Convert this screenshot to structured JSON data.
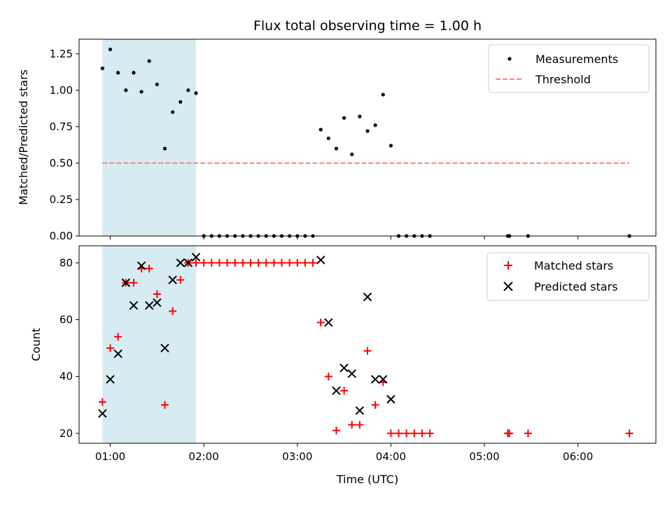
{
  "chart_data": [
    {
      "type": "scatter",
      "title": "Flux total observing time = 1.00 h",
      "ylabel": "Matched/Predicted stars",
      "xlim": [
        "00:40",
        "06:50"
      ],
      "ylim": [
        0,
        1.35
      ],
      "yticks": [
        "0.00",
        "0.25",
        "0.50",
        "0.75",
        "1.00",
        "1.25"
      ],
      "shaded_interval": [
        "00:55",
        "01:55"
      ],
      "legend_position": "upper right",
      "colors": {
        "measurements": "#000000",
        "threshold": "#ff7f7f",
        "shade": "#add8e6"
      },
      "series": [
        {
          "name": "Measurements",
          "points": [
            [
              "00:55",
              1.15
            ],
            [
              "01:00",
              1.28
            ],
            [
              "01:05",
              1.12
            ],
            [
              "01:10",
              1.0
            ],
            [
              "01:15",
              1.12
            ],
            [
              "01:20",
              0.99
            ],
            [
              "01:25",
              1.2
            ],
            [
              "01:30",
              1.04
            ],
            [
              "01:35",
              0.6
            ],
            [
              "01:40",
              0.85
            ],
            [
              "01:45",
              0.92
            ],
            [
              "01:50",
              1.0
            ],
            [
              "01:55",
              0.98
            ],
            [
              "02:00",
              0
            ],
            [
              "02:05",
              0
            ],
            [
              "02:10",
              0
            ],
            [
              "02:15",
              0
            ],
            [
              "02:20",
              0
            ],
            [
              "02:25",
              0
            ],
            [
              "02:30",
              0
            ],
            [
              "02:35",
              0
            ],
            [
              "02:40",
              0
            ],
            [
              "02:45",
              0
            ],
            [
              "02:50",
              0
            ],
            [
              "02:55",
              0
            ],
            [
              "03:00",
              0
            ],
            [
              "03:05",
              0
            ],
            [
              "03:10",
              0
            ],
            [
              "03:15",
              0.73
            ],
            [
              "03:20",
              0.67
            ],
            [
              "03:25",
              0.6
            ],
            [
              "03:30",
              0.81
            ],
            [
              "03:35",
              0.56
            ],
            [
              "03:40",
              0.82
            ],
            [
              "03:45",
              0.72
            ],
            [
              "03:50",
              0.76
            ],
            [
              "03:55",
              0.97
            ],
            [
              "04:00",
              0.62
            ],
            [
              "04:05",
              0
            ],
            [
              "04:10",
              0
            ],
            [
              "04:15",
              0
            ],
            [
              "04:20",
              0
            ],
            [
              "04:25",
              0
            ],
            [
              "05:15",
              0
            ],
            [
              "05:16",
              0
            ],
            [
              "05:28",
              0
            ],
            [
              "06:33",
              0
            ]
          ]
        },
        {
          "name": "Threshold",
          "style": "dashed",
          "points": [
            [
              "00:55",
              0.5
            ],
            [
              "06:33",
              0.5
            ]
          ]
        }
      ]
    },
    {
      "type": "scatter",
      "xlabel": "Time (UTC)",
      "ylabel": "Count",
      "xlim": [
        "00:40",
        "06:50"
      ],
      "ylim": [
        16.5,
        86
      ],
      "yticks": [
        "20",
        "40",
        "60",
        "80"
      ],
      "xticks": [
        "01:00",
        "02:00",
        "03:00",
        "04:00",
        "05:00",
        "06:00"
      ],
      "shaded_interval": [
        "00:55",
        "01:55"
      ],
      "legend_position": "upper right",
      "colors": {
        "matched": "#ff0000",
        "predicted": "#000000",
        "shade": "#add8e6"
      },
      "series": [
        {
          "name": "Matched stars",
          "marker": "plus",
          "points": [
            [
              "00:55",
              31
            ],
            [
              "01:00",
              50
            ],
            [
              "01:05",
              54
            ],
            [
              "01:10",
              73
            ],
            [
              "01:15",
              73
            ],
            [
              "01:20",
              78
            ],
            [
              "01:25",
              78
            ],
            [
              "01:30",
              69
            ],
            [
              "01:35",
              30
            ],
            [
              "01:40",
              63
            ],
            [
              "01:45",
              74
            ],
            [
              "01:50",
              80
            ],
            [
              "01:55",
              80
            ],
            [
              "02:00",
              80
            ],
            [
              "02:05",
              80
            ],
            [
              "02:10",
              80
            ],
            [
              "02:15",
              80
            ],
            [
              "02:20",
              80
            ],
            [
              "02:25",
              80
            ],
            [
              "02:30",
              80
            ],
            [
              "02:35",
              80
            ],
            [
              "02:40",
              80
            ],
            [
              "02:45",
              80
            ],
            [
              "02:50",
              80
            ],
            [
              "02:55",
              80
            ],
            [
              "03:00",
              80
            ],
            [
              "03:05",
              80
            ],
            [
              "03:10",
              80
            ],
            [
              "03:15",
              59
            ],
            [
              "03:20",
              40
            ],
            [
              "03:25",
              21
            ],
            [
              "03:30",
              35
            ],
            [
              "03:35",
              23
            ],
            [
              "03:40",
              23
            ],
            [
              "03:45",
              49
            ],
            [
              "03:50",
              30
            ],
            [
              "03:55",
              38
            ],
            [
              "04:00",
              20
            ],
            [
              "04:05",
              20
            ],
            [
              "04:10",
              20
            ],
            [
              "04:15",
              20
            ],
            [
              "04:20",
              20
            ],
            [
              "04:25",
              20
            ],
            [
              "05:15",
              20
            ],
            [
              "05:16",
              20
            ],
            [
              "05:28",
              20
            ],
            [
              "06:33",
              20
            ]
          ]
        },
        {
          "name": "Predicted stars",
          "marker": "x",
          "points": [
            [
              "00:55",
              27
            ],
            [
              "01:00",
              39
            ],
            [
              "01:05",
              48
            ],
            [
              "01:10",
              73
            ],
            [
              "01:15",
              65
            ],
            [
              "01:20",
              79
            ],
            [
              "01:25",
              65
            ],
            [
              "01:30",
              66
            ],
            [
              "01:35",
              50
            ],
            [
              "01:40",
              74
            ],
            [
              "01:45",
              80
            ],
            [
              "01:50",
              80
            ],
            [
              "01:55",
              82
            ],
            [
              "03:15",
              81
            ],
            [
              "03:20",
              59
            ],
            [
              "03:25",
              35
            ],
            [
              "03:30",
              43
            ],
            [
              "03:35",
              41
            ],
            [
              "03:40",
              28
            ],
            [
              "03:45",
              68
            ],
            [
              "03:50",
              39
            ],
            [
              "03:55",
              39
            ],
            [
              "04:00",
              32
            ]
          ]
        }
      ]
    }
  ]
}
